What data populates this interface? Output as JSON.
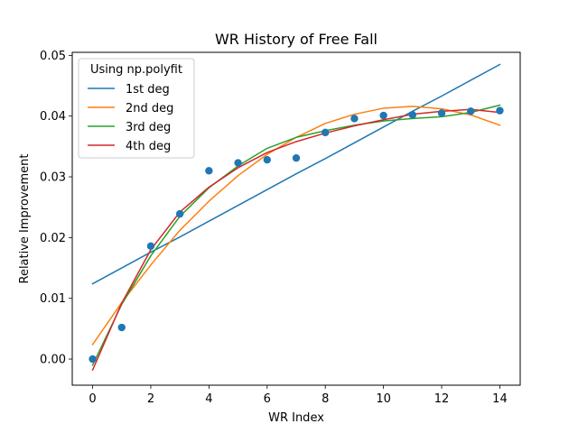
{
  "chart_data": {
    "type": "scatter",
    "title": "WR History of Free Fall",
    "xlabel": "WR Index",
    "ylabel": "Relative Improvement",
    "xlim": [
      -0.7,
      14.7
    ],
    "ylim": [
      -0.0043,
      0.0505
    ],
    "xticks": [
      0,
      2,
      4,
      6,
      8,
      10,
      12,
      14
    ],
    "xtick_labels": [
      "0",
      "2",
      "4",
      "6",
      "8",
      "10",
      "12",
      "14"
    ],
    "yticks": [
      0.0,
      0.01,
      0.02,
      0.03,
      0.04,
      0.05
    ],
    "ytick_labels": [
      "0.00",
      "0.01",
      "0.02",
      "0.03",
      "0.04",
      "0.05"
    ],
    "grid": false,
    "legend": {
      "title": "Using np.polyfit",
      "placement": "top-left"
    },
    "points": {
      "color": "#1f77b4",
      "x": [
        0,
        1,
        2,
        3,
        4,
        5,
        6,
        7,
        8,
        9,
        10,
        11,
        12,
        13,
        14
      ],
      "y": [
        0.0,
        0.0052,
        0.0186,
        0.0239,
        0.031,
        0.0323,
        0.0328,
        0.0331,
        0.0373,
        0.0396,
        0.0401,
        0.0402,
        0.0405,
        0.0408,
        0.0409
      ]
    },
    "x": [
      0,
      1,
      2,
      3,
      4,
      5,
      6,
      7,
      8,
      9,
      10,
      11,
      12,
      13,
      14
    ],
    "series": [
      {
        "name": "1st deg",
        "color": "#1f77b4",
        "values": [
          0.0124,
          0.015,
          0.0176,
          0.0201,
          0.0227,
          0.0253,
          0.0279,
          0.0305,
          0.033,
          0.0356,
          0.0382,
          0.0408,
          0.0433,
          0.0459,
          0.0485
        ]
      },
      {
        "name": "2nd deg",
        "color": "#ff7f0e",
        "values": [
          0.0024,
          0.0093,
          0.0155,
          0.0212,
          0.026,
          0.0302,
          0.0337,
          0.0365,
          0.0388,
          0.0403,
          0.0413,
          0.0416,
          0.0412,
          0.0402,
          0.0385
        ]
      },
      {
        "name": "3rd deg",
        "color": "#2ca02c",
        "values": [
          -0.001,
          0.009,
          0.017,
          0.0235,
          0.0282,
          0.0318,
          0.0347,
          0.0365,
          0.0376,
          0.0385,
          0.0392,
          0.0396,
          0.0399,
          0.0406,
          0.0418
        ]
      },
      {
        "name": "4th deg",
        "color": "#d62728",
        "values": [
          -0.0018,
          0.0092,
          0.018,
          0.0242,
          0.0283,
          0.0315,
          0.034,
          0.0358,
          0.0372,
          0.0384,
          0.0394,
          0.0403,
          0.0408,
          0.0411,
          0.0406
        ]
      }
    ]
  }
}
